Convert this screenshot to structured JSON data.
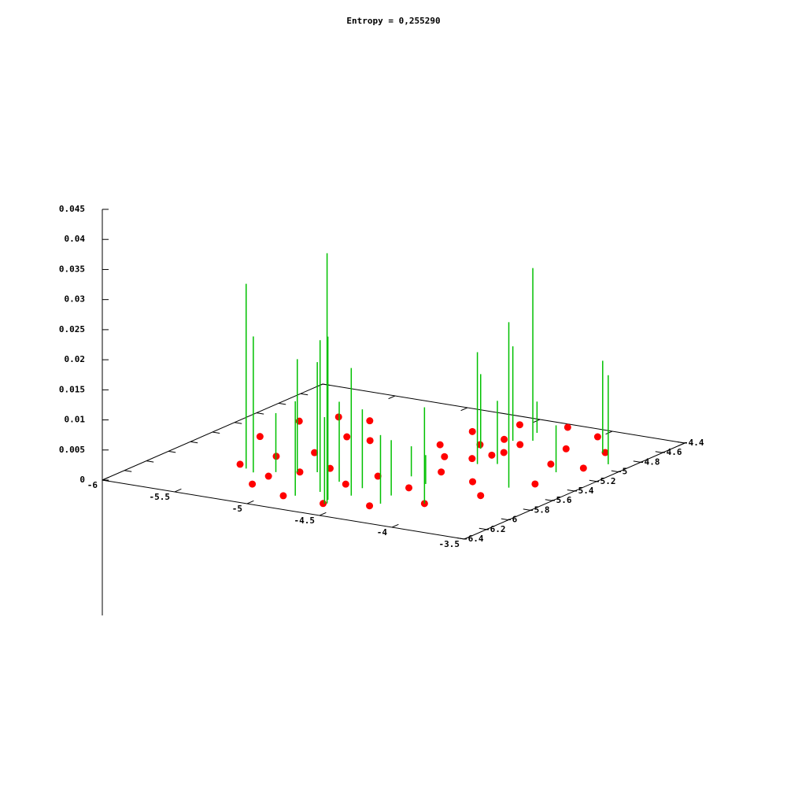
{
  "chart_data": {
    "type": "scatter3d",
    "title": "Entropy = 0,255290",
    "xlim": [
      -6,
      -3.5
    ],
    "xticks": [
      -6,
      -5.5,
      -5,
      -4.5,
      -4,
      -3.5
    ],
    "ylim": [
      -6.4,
      -4.4
    ],
    "yticks": [
      -6.4,
      -6.2,
      -6,
      -5.8,
      -5.6,
      -5.4,
      -5.2,
      -5,
      -4.8,
      -4.6,
      -4.4
    ],
    "zlim": [
      0,
      0.045
    ],
    "zticks": [
      0,
      0.005,
      0.01,
      0.015,
      0.02,
      0.025,
      0.03,
      0.035,
      0.04,
      0.045
    ],
    "series": [
      {
        "style": "points",
        "color": "#ff0000",
        "x": [
          -5.49,
          -5.2,
          -4.91,
          -4.62,
          -4.36,
          -4.11,
          -3.92,
          -3.78,
          -3.72,
          -3.79,
          -4.01,
          -4.27,
          -4.54,
          -4.7,
          -4.71,
          -4.55,
          -4.39,
          -4.3,
          -4.31,
          -4.45,
          -4.51,
          -4.33,
          -5.71,
          -5.69,
          -5.54,
          -5.34,
          -5.11,
          -5.27,
          -5.4,
          -5.1,
          -4.73,
          -4.37,
          -4.12,
          -4.99,
          -4.66,
          -5.25,
          -5.21,
          -3.93,
          -4.03,
          -4.39
        ],
        "y": [
          -5.82,
          -6.09,
          -6.19,
          -6.21,
          -6.13,
          -5.96,
          -5.7,
          -5.39,
          -5.03,
          -4.74,
          -4.52,
          -4.45,
          -4.53,
          -4.75,
          -5.03,
          -5.2,
          -5.16,
          -4.99,
          -4.83,
          -4.79,
          -4.93,
          -5.06,
          -5.35,
          -5.02,
          -4.86,
          -4.84,
          -5.14,
          -5.14,
          -5.61,
          -5.79,
          -5.86,
          -5.76,
          -5.51,
          -5.66,
          -5.66,
          -5.46,
          -5.93,
          -5.05,
          -4.78,
          -5.44
        ],
        "z": [
          0,
          0,
          0,
          0,
          0,
          0,
          0,
          0,
          0,
          0,
          0,
          0,
          0,
          0,
          0,
          0,
          0,
          0,
          0,
          0,
          0,
          0,
          0,
          0,
          0,
          0,
          0,
          0,
          0,
          0,
          0,
          0,
          0,
          0,
          0,
          0,
          0,
          0,
          0,
          0
        ]
      },
      {
        "style": "impulses",
        "color": "#00c000",
        "x": [
          -5.41,
          -5.33,
          -4.6,
          -4.64,
          -4.77,
          -5.11,
          -4.57,
          -5.01,
          -4.29,
          -3.87,
          -4.39,
          -4.3,
          -3.8,
          -4.11,
          -5.22,
          -4.49,
          -4.33,
          -3.81,
          -4.36,
          -4.46,
          -4.2,
          -3.64,
          -4.85,
          -4.6,
          -4.33,
          -4.61,
          -4.79,
          -4.37
        ],
        "y": [
          -5.87,
          -5.91,
          -6.2,
          -6.14,
          -6.04,
          -5.8,
          -6.02,
          -5.75,
          -4.74,
          -5.51,
          -4.79,
          -5.23,
          -4.75,
          -5.96,
          -5.85,
          -5.58,
          -6.07,
          -5.16,
          -4.61,
          -4.99,
          -5.18,
          -4.91,
          -6.16,
          -5.88,
          -5.66,
          -6.21,
          -5.84,
          -5.92
        ],
        "z": [
          0.0307,
          0.0226,
          0.0416,
          0.0271,
          0.0252,
          0.0188,
          0.0212,
          0.0183,
          0.0287,
          0.0275,
          0.0157,
          0.0186,
          0.0153,
          0.016,
          0.0098,
          0.005,
          0.0114,
          0.0078,
          0.0052,
          0.0124,
          0.0105,
          0.0148,
          0.0157,
          0.0131,
          0.0048,
          0.0144,
          0.0133,
          0.0092
        ]
      }
    ]
  }
}
